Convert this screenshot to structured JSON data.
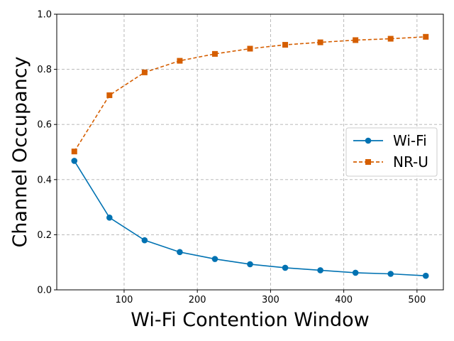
{
  "chart_data": {
    "type": "line",
    "title": "",
    "xlabel": "Wi-Fi Contention Window",
    "ylabel": "Channel Occupancy",
    "xlim": [
      8,
      536
    ],
    "ylim": [
      0.0,
      1.0
    ],
    "xticks": [
      100,
      200,
      300,
      400,
      500
    ],
    "yticks": [
      0.0,
      0.2,
      0.4,
      0.6,
      0.8,
      1.0
    ],
    "xtick_labels": [
      "100",
      "200",
      "300",
      "400",
      "500"
    ],
    "ytick_labels": [
      "0.0",
      "0.2",
      "0.4",
      "0.6",
      "0.8",
      "1.0"
    ],
    "grid": true,
    "legend_position": "center-right",
    "x": [
      32,
      80,
      128,
      176,
      224,
      272,
      320,
      368,
      416,
      464,
      512
    ],
    "series": [
      {
        "name": "Wi-Fi",
        "color": "#0072B2",
        "marker": "circle",
        "line_style": "solid",
        "values": [
          0.468,
          0.262,
          0.18,
          0.137,
          0.112,
          0.093,
          0.08,
          0.071,
          0.062,
          0.058,
          0.051
        ]
      },
      {
        "name": "NR-U",
        "color": "#D55E00",
        "marker": "square",
        "line_style": "dashed",
        "values": [
          0.502,
          0.706,
          0.789,
          0.831,
          0.856,
          0.875,
          0.889,
          0.898,
          0.906,
          0.911,
          0.918
        ]
      }
    ]
  }
}
